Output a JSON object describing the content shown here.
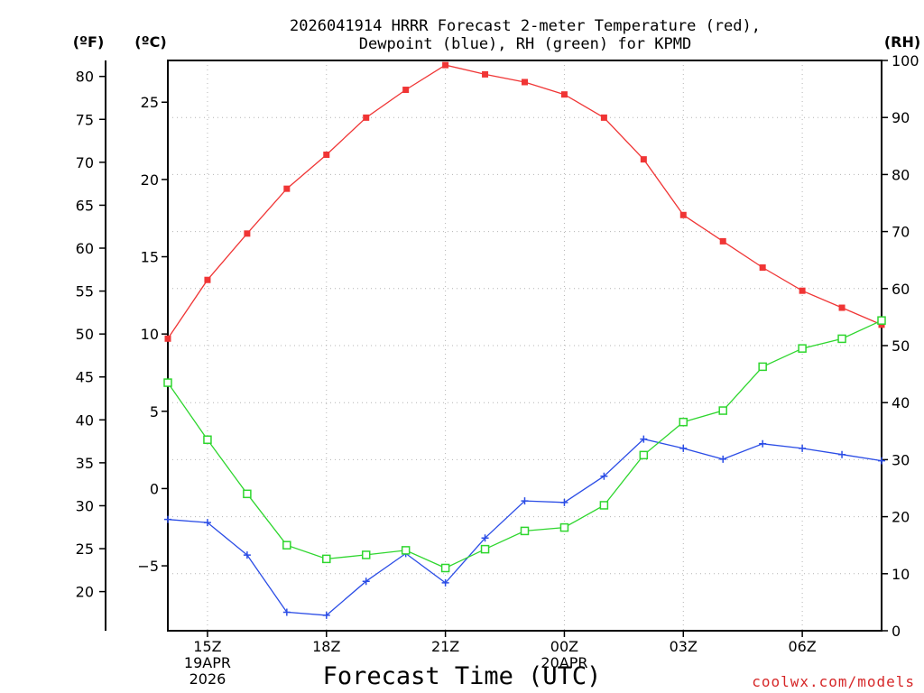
{
  "chart_data": {
    "type": "line",
    "title_lines": [
      "2026041914 HRRR Forecast 2-meter Temperature (red),",
      "Dewpoint (blue), RH (green) for KPMD"
    ],
    "xlabel": "Forecast Time (UTC)",
    "credit": "coolwx.com/models",
    "units": {
      "fahrenheit": "(ºF)",
      "celsius": "(ºC)",
      "rh": "(RH)"
    },
    "x_hours": [
      14,
      15,
      16,
      17,
      18,
      19,
      20,
      21,
      22,
      23,
      24,
      25,
      26,
      27,
      28,
      29,
      30,
      31,
      32
    ],
    "x_range": [
      14,
      32
    ],
    "x_ticks": [
      {
        "hour": 15,
        "lines": [
          "15Z",
          "19APR",
          "2026"
        ]
      },
      {
        "hour": 18,
        "lines": [
          "18Z"
        ]
      },
      {
        "hour": 21,
        "lines": [
          "21Z"
        ]
      },
      {
        "hour": 24,
        "lines": [
          "00Z",
          "20APR"
        ]
      },
      {
        "hour": 27,
        "lines": [
          "03Z"
        ]
      },
      {
        "hour": 30,
        "lines": [
          "06Z"
        ]
      }
    ],
    "celsius_axis": {
      "range": [
        -9.2,
        27.7
      ],
      "ticks": [
        "25",
        "20",
        "15",
        "10",
        "5",
        "0",
        "−5"
      ]
    },
    "fahrenheit_axis": {
      "ticks": [
        "80",
        "75",
        "70",
        "65",
        "60",
        "55",
        "50",
        "45",
        "40",
        "35",
        "30",
        "25",
        "20"
      ]
    },
    "rh_axis": {
      "range": [
        0,
        100
      ],
      "ticks": [
        "100",
        "90",
        "80",
        "70",
        "60",
        "50",
        "40",
        "30",
        "20",
        "10",
        "0"
      ]
    },
    "series": [
      {
        "name": "Temperature",
        "axis": "celsius",
        "color": "#f03535",
        "marker": "filled-square",
        "values": [
          9.7,
          13.5,
          16.5,
          19.4,
          21.6,
          24.0,
          25.8,
          27.4,
          26.8,
          26.3,
          25.5,
          24.0,
          21.3,
          17.7,
          16.0,
          14.3,
          12.8,
          11.7,
          10.6
        ]
      },
      {
        "name": "Dewpoint",
        "axis": "celsius",
        "color": "#2b4de6",
        "marker": "plus",
        "values": [
          -2.0,
          -2.2,
          -4.3,
          -8.0,
          -8.2,
          -6.0,
          -4.2,
          -6.1,
          -3.2,
          -0.8,
          -0.9,
          0.8,
          3.2,
          2.6,
          1.9,
          2.9,
          2.6,
          2.2,
          1.8
        ]
      },
      {
        "name": "RH",
        "axis": "rh",
        "color": "#2ed62e",
        "marker": "open-square",
        "values": [
          43.5,
          33.5,
          24.0,
          15.0,
          12.6,
          13.3,
          14.1,
          11.0,
          14.3,
          17.5,
          18.1,
          22.0,
          30.8,
          36.6,
          38.6,
          46.3,
          49.5,
          51.2,
          54.4
        ]
      }
    ]
  }
}
